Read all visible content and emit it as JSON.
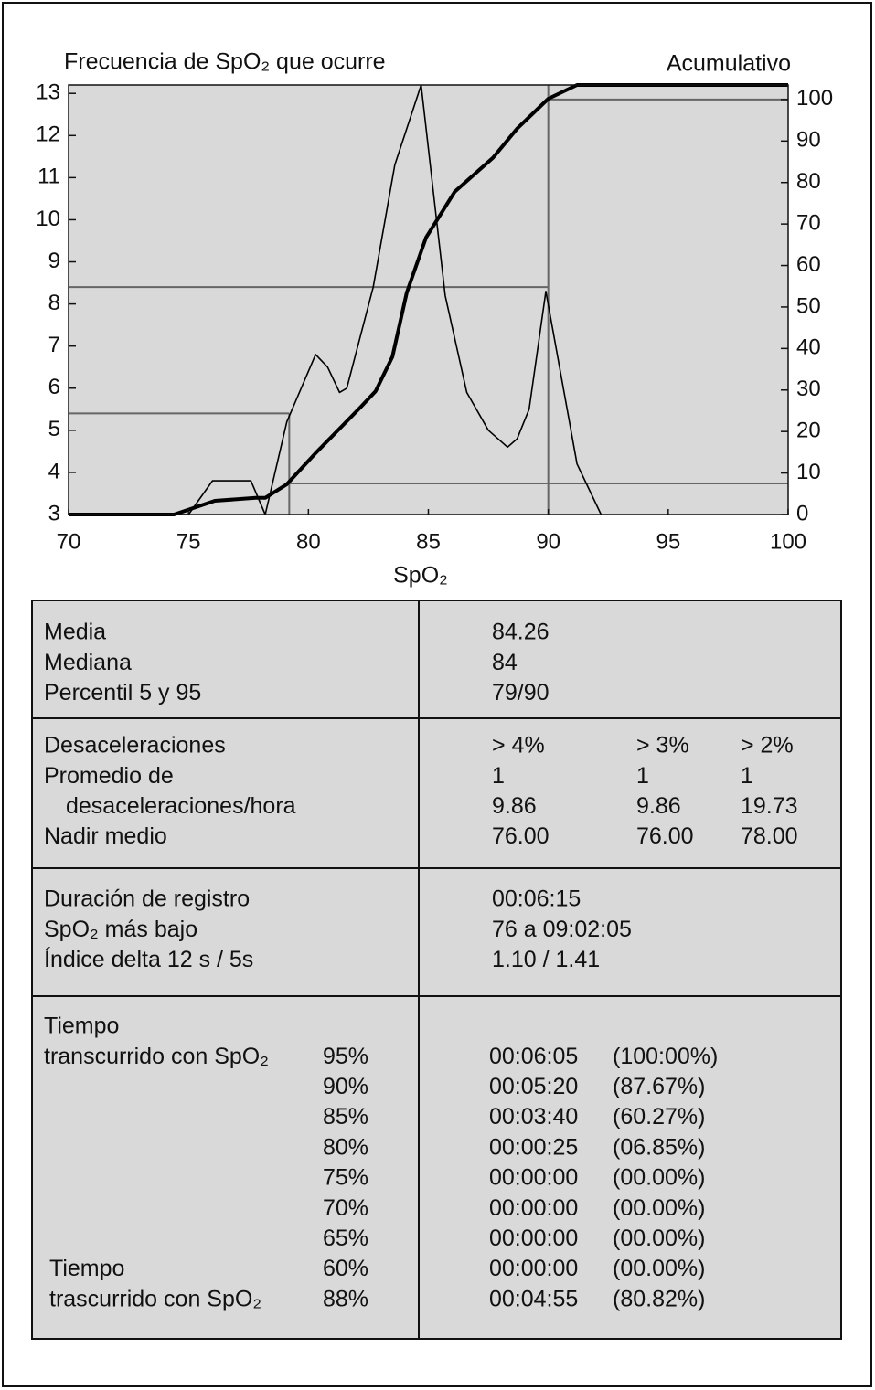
{
  "chart_data": {
    "type": "line",
    "y_title": "Frecuencia de SpO₂ que ocurre",
    "y2_title": "Acumulativo",
    "x_title": "SpO₂",
    "xlim": [
      70,
      100
    ],
    "xticks": [
      70,
      75,
      80,
      85,
      90,
      95,
      100
    ],
    "ylim": [
      3,
      13.2
    ],
    "yticks": [
      3,
      4,
      5,
      6,
      7,
      8,
      9,
      10,
      11,
      12,
      13
    ],
    "y2lim": [
      0,
      103.5
    ],
    "y2ticks": [
      0,
      10,
      20,
      30,
      40,
      50,
      60,
      70,
      80,
      90,
      100
    ],
    "series": [
      {
        "color": "#000000",
        "x": [
          70,
          75,
          76.0,
          77.6,
          78.2,
          79.1,
          80.3,
          80.8,
          81.3,
          81.6,
          82.7,
          83.6,
          84.7,
          85.7,
          86.6,
          87.5,
          88.3,
          88.7,
          89.2,
          89.9,
          91.2,
          92.2
        ],
        "values": [
          3,
          3,
          3.8,
          3.8,
          3,
          5.2,
          6.8,
          6.5,
          5.9,
          6.0,
          8.4,
          11.3,
          13.2,
          8.2,
          5.9,
          5.0,
          4.6,
          4.8,
          5.5,
          8.3,
          4.2,
          3
        ]
      },
      {
        "color": "#000000",
        "axis": "y2",
        "x": [
          70,
          74.4,
          76.1,
          77.8,
          78.2,
          79.1,
          80.3,
          82.2,
          82.8,
          83.5,
          84.1,
          84.9,
          86.1,
          87.7,
          88.7,
          90.0,
          91.2,
          100
        ],
        "values": [
          0,
          0,
          3.3,
          4.0,
          4.0,
          7.3,
          14.8,
          26,
          29.7,
          38,
          53.5,
          66.7,
          77.8,
          86,
          93,
          100.2,
          103.5,
          103.5
        ]
      }
    ],
    "guides": [
      {
        "x": 79.2,
        "y": 5.4,
        "y2": 7.5
      },
      {
        "x": 90,
        "y": 8.4,
        "y2": 100
      }
    ]
  },
  "table": {
    "sections": [
      {
        "rows": [
          {
            "label": "Media",
            "cells": [
              "84.26"
            ]
          },
          {
            "label": "Mediana",
            "cells": [
              "84"
            ]
          },
          {
            "label": "Percentil 5 y 95",
            "cells": [
              "79/90"
            ]
          }
        ]
      },
      {
        "rows": [
          {
            "label": "Desaceleraciones",
            "cells": [
              "> 4%",
              "> 3%",
              "> 2%"
            ]
          },
          {
            "label": "Promedio de",
            "cells": [
              "1",
              "1",
              "1"
            ]
          },
          {
            "label": "desaceleraciones/hora",
            "cells": [
              "9.86",
              "9.86",
              "19.73"
            ]
          },
          {
            "label": "Nadir medio",
            "cells": [
              "76.00",
              "76.00",
              "78.00"
            ]
          }
        ]
      },
      {
        "rows": [
          {
            "label": "Duración de registro",
            "cells": [
              "00:06:15"
            ]
          },
          {
            "label": "SpO₂ más bajo",
            "cells": [
              "76 a 09:02:05"
            ]
          },
          {
            "label": "Índice delta 12 s / 5s",
            "cells": [
              "1.10 / 1.41"
            ]
          }
        ]
      },
      {
        "rows": [
          {
            "label": "Tiempo"
          },
          {
            "label": "transcurrido con SpO₂",
            "level": "95%",
            "cells": [
              "00:06:05",
              "(100:00%)"
            ]
          },
          {
            "level": "90%",
            "cells": [
              "00:05:20",
              "(87.67%)"
            ]
          },
          {
            "level": "85%",
            "cells": [
              "00:03:40",
              "(60.27%)"
            ]
          },
          {
            "level": "80%",
            "cells": [
              "00:00:25",
              "(06.85%)"
            ]
          },
          {
            "level": "75%",
            "cells": [
              "00:00:00",
              "(00.00%)"
            ]
          },
          {
            "level": "70%",
            "cells": [
              "00:00:00",
              "(00.00%)"
            ]
          },
          {
            "level": "65%",
            "cells": [
              "00:00:00",
              "(00.00%)"
            ]
          },
          {
            "label": "Tiempo",
            "level": "60%",
            "cells": [
              "00:00:00",
              "(00.00%)"
            ]
          },
          {
            "label": "trascurrido con SpO₂",
            "level": "88%",
            "cells": [
              "00:04:55",
              "(80.82%)"
            ]
          }
        ]
      }
    ]
  }
}
